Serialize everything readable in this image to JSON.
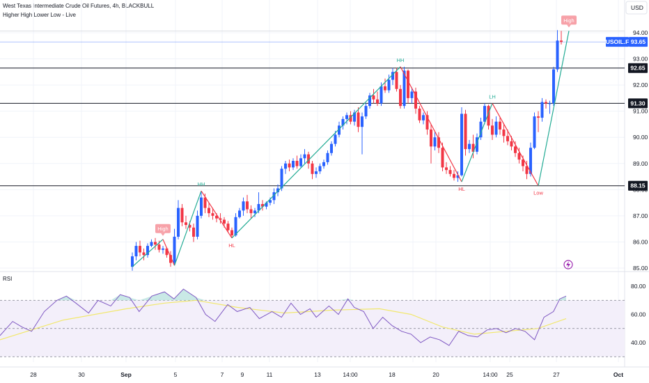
{
  "header": {
    "title": "West Texas Intermediate Crude Oil Futures, 4h, BLACKBULL",
    "subtitle": "Higher High Lower Low - Live",
    "currency": "USD",
    "rsi_label": "RSI"
  },
  "colors": {
    "bull": "#2962ff",
    "bear": "#f23645",
    "up_leg": "#22ab94",
    "down_leg": "#f23645",
    "level": "#131722",
    "price_line": "#2962ff",
    "rsi_line": "#7e57c2",
    "rsi_ma": "#f2e86d",
    "rsi_band": "#f3effa"
  },
  "chart_data": [
    {
      "type": "candlestick",
      "symbol": "USOIL.F",
      "last_price": "93.65",
      "ylim": [
        84.95,
        94.75
      ],
      "yticks": [
        "85.00",
        "86.00",
        "87.00",
        "88.00",
        "89.00",
        "90.00",
        "91.00",
        "92.00",
        "93.00",
        "94.00"
      ],
      "x_labels": [
        "28",
        "30",
        "Sep",
        "5",
        "7",
        "9",
        "11",
        "13",
        "14:00",
        "18",
        "20",
        "14:00",
        "25",
        "27",
        "Oct"
      ],
      "levels": [
        {
          "price": 92.65,
          "label": "92.65"
        },
        {
          "price": 91.3,
          "label": "91.30"
        },
        {
          "price": 88.15,
          "label": "88.15"
        }
      ],
      "extra_line": 94.07,
      "candles": [
        [
          85.05,
          85.6,
          84.9,
          85.45
        ],
        [
          85.45,
          86.0,
          85.3,
          85.85
        ],
        [
          85.85,
          86.05,
          85.45,
          85.6
        ],
        [
          85.6,
          85.75,
          85.3,
          85.5
        ],
        [
          85.5,
          85.95,
          85.4,
          85.85
        ],
        [
          85.85,
          86.1,
          85.8,
          86.0
        ],
        [
          86.0,
          86.15,
          85.7,
          85.9
        ],
        [
          85.9,
          86.05,
          85.6,
          85.7
        ],
        [
          85.7,
          85.85,
          85.55,
          85.75
        ],
        [
          85.75,
          85.8,
          85.4,
          85.5
        ],
        [
          85.5,
          85.65,
          85.05,
          85.2
        ],
        [
          85.2,
          86.5,
          85.1,
          86.2
        ],
        [
          86.2,
          87.6,
          86.1,
          87.3
        ],
        [
          87.3,
          87.45,
          86.6,
          86.75
        ],
        [
          86.75,
          87.0,
          86.5,
          86.65
        ],
        [
          86.65,
          86.8,
          86.4,
          86.55
        ],
        [
          86.55,
          86.7,
          86.0,
          86.2
        ],
        [
          86.2,
          87.2,
          86.1,
          87.0
        ],
        [
          87.0,
          87.95,
          86.9,
          87.7
        ],
        [
          87.7,
          87.85,
          87.1,
          87.3
        ],
        [
          87.3,
          87.5,
          86.95,
          87.1
        ],
        [
          87.1,
          87.3,
          86.85,
          87.0
        ],
        [
          87.0,
          87.1,
          86.75,
          86.9
        ],
        [
          86.9,
          87.1,
          86.7,
          86.85
        ],
        [
          86.85,
          86.95,
          86.55,
          86.7
        ],
        [
          86.7,
          86.8,
          86.35,
          86.45
        ],
        [
          86.45,
          86.55,
          86.15,
          86.25
        ],
        [
          86.25,
          87.1,
          86.2,
          86.95
        ],
        [
          86.95,
          87.3,
          86.9,
          87.2
        ],
        [
          87.2,
          87.7,
          87.0,
          87.55
        ],
        [
          87.55,
          87.8,
          87.1,
          87.25
        ],
        [
          87.25,
          87.4,
          86.9,
          87.1
        ],
        [
          87.1,
          87.3,
          86.95,
          87.2
        ],
        [
          87.2,
          87.9,
          87.1,
          87.45
        ],
        [
          87.45,
          87.6,
          87.2,
          87.35
        ],
        [
          87.35,
          87.55,
          87.25,
          87.5
        ],
        [
          87.5,
          87.7,
          87.4,
          87.6
        ],
        [
          87.6,
          88.05,
          87.45,
          87.9
        ],
        [
          87.9,
          88.2,
          87.75,
          88.05
        ],
        [
          88.05,
          88.9,
          87.95,
          88.8
        ],
        [
          88.8,
          89.1,
          88.6,
          89.0
        ],
        [
          89.0,
          89.15,
          88.7,
          88.85
        ],
        [
          88.85,
          89.2,
          88.75,
          89.1
        ],
        [
          89.1,
          89.3,
          88.8,
          88.9
        ],
        [
          88.9,
          89.35,
          88.85,
          89.2
        ],
        [
          89.2,
          89.55,
          89.0,
          89.35
        ],
        [
          89.35,
          89.45,
          88.8,
          89.0
        ],
        [
          89.0,
          89.1,
          88.4,
          88.6
        ],
        [
          88.6,
          88.85,
          88.45,
          88.7
        ],
        [
          88.7,
          89.0,
          88.6,
          88.9
        ],
        [
          88.9,
          89.15,
          88.8,
          89.05
        ],
        [
          89.05,
          89.5,
          88.95,
          89.4
        ],
        [
          89.4,
          89.85,
          89.3,
          89.75
        ],
        [
          89.75,
          90.25,
          89.65,
          90.1
        ],
        [
          90.1,
          90.6,
          90.0,
          90.45
        ],
        [
          90.45,
          90.8,
          90.3,
          90.7
        ],
        [
          90.7,
          90.95,
          90.5,
          90.85
        ],
        [
          90.85,
          91.0,
          90.5,
          90.6
        ],
        [
          90.6,
          91.05,
          90.45,
          90.95
        ],
        [
          90.95,
          91.15,
          90.2,
          90.4
        ],
        [
          90.4,
          90.95,
          89.35,
          90.8
        ],
        [
          90.8,
          91.3,
          90.7,
          91.2
        ],
        [
          91.2,
          91.7,
          91.1,
          91.6
        ],
        [
          91.6,
          91.85,
          91.3,
          91.45
        ],
        [
          91.45,
          91.75,
          91.2,
          91.3
        ],
        [
          91.3,
          92.1,
          91.2,
          91.95
        ],
        [
          91.95,
          92.25,
          91.7,
          91.8
        ],
        [
          91.8,
          92.4,
          91.7,
          92.2
        ],
        [
          92.2,
          92.65,
          92.0,
          92.5
        ],
        [
          92.5,
          92.65,
          91.75,
          91.85
        ],
        [
          91.85,
          92.0,
          91.1,
          91.2
        ],
        [
          91.2,
          92.7,
          91.1,
          92.55
        ],
        [
          92.55,
          92.6,
          91.3,
          91.5
        ],
        [
          91.5,
          91.9,
          91.3,
          91.75
        ],
        [
          91.75,
          91.9,
          90.9,
          91.1
        ],
        [
          91.1,
          91.2,
          90.55,
          90.65
        ],
        [
          90.65,
          90.95,
          90.5,
          90.85
        ],
        [
          90.85,
          91.0,
          90.1,
          90.3
        ],
        [
          90.3,
          90.5,
          89.0,
          89.65
        ],
        [
          89.65,
          90.2,
          89.5,
          90.0
        ],
        [
          90.0,
          90.2,
          89.4,
          89.6
        ],
        [
          89.6,
          89.8,
          88.7,
          88.85
        ],
        [
          88.85,
          89.05,
          88.6,
          88.75
        ],
        [
          88.75,
          88.9,
          88.5,
          88.6
        ],
        [
          88.6,
          88.75,
          88.35,
          88.45
        ],
        [
          88.45,
          88.7,
          88.3,
          88.55
        ],
        [
          88.55,
          91.15,
          88.5,
          90.9
        ],
        [
          90.9,
          91.05,
          89.3,
          89.55
        ],
        [
          89.55,
          89.9,
          89.4,
          89.75
        ],
        [
          89.75,
          90.1,
          89.2,
          89.45
        ],
        [
          89.45,
          90.15,
          89.35,
          90.0
        ],
        [
          90.0,
          90.75,
          89.9,
          90.6
        ],
        [
          90.6,
          91.3,
          90.5,
          91.2
        ],
        [
          91.2,
          91.25,
          90.3,
          90.45
        ],
        [
          90.45,
          90.7,
          89.9,
          90.1
        ],
        [
          90.1,
          90.8,
          90.0,
          90.6
        ],
        [
          90.6,
          90.75,
          90.1,
          90.3
        ],
        [
          90.3,
          90.5,
          89.8,
          90.05
        ],
        [
          90.05,
          90.3,
          89.7,
          89.85
        ],
        [
          89.85,
          90.05,
          89.5,
          89.65
        ],
        [
          89.65,
          89.85,
          89.25,
          89.4
        ],
        [
          89.4,
          89.6,
          89.0,
          89.15
        ],
        [
          89.15,
          89.3,
          88.7,
          88.9
        ],
        [
          88.9,
          89.1,
          88.4,
          88.6
        ],
        [
          88.6,
          89.8,
          88.5,
          89.6
        ],
        [
          89.6,
          90.95,
          89.55,
          90.8
        ],
        [
          90.8,
          91.0,
          90.2,
          90.75
        ],
        [
          90.75,
          91.5,
          90.6,
          91.35
        ],
        [
          91.35,
          91.45,
          91.1,
          91.3
        ],
        [
          91.3,
          91.4,
          90.9,
          91.3
        ],
        [
          91.3,
          92.7,
          91.2,
          92.6
        ],
        [
          92.6,
          94.1,
          92.5,
          93.7
        ],
        [
          93.7,
          94.07,
          93.55,
          93.65
        ]
      ],
      "annotations": [
        {
          "i": 8,
          "price": 86.1,
          "text": "High",
          "kind": "tag"
        },
        {
          "i": 18,
          "price": 87.95,
          "text": "HH",
          "kind": "up"
        },
        {
          "i": 26,
          "price": 86.15,
          "text": "HL",
          "kind": "down"
        },
        {
          "i": 70,
          "price": 92.7,
          "text": "HH",
          "kind": "up"
        },
        {
          "i": 86,
          "price": 88.3,
          "text": "HL",
          "kind": "down"
        },
        {
          "i": 94,
          "price": 91.3,
          "text": "LH",
          "kind": "up"
        },
        {
          "i": 106,
          "price": 88.15,
          "text": "Low",
          "kind": "down"
        },
        {
          "i": 114,
          "price": 94.07,
          "text": "High",
          "kind": "tag"
        }
      ],
      "zigzag": [
        {
          "i": 0,
          "price": 85.05
        },
        {
          "i": 8,
          "price": 86.1
        },
        {
          "i": 11,
          "price": 85.1
        },
        {
          "i": 18,
          "price": 87.95
        },
        {
          "i": 26,
          "price": 86.15
        },
        {
          "i": 70,
          "price": 92.7
        },
        {
          "i": 86,
          "price": 88.3
        },
        {
          "i": 94,
          "price": 91.3
        },
        {
          "i": 106,
          "price": 88.15
        },
        {
          "i": 114,
          "price": 94.07
        }
      ]
    },
    {
      "type": "line",
      "name": "RSI",
      "ylim": [
        27,
        86
      ],
      "yticks": [
        "40.00",
        "60.00",
        "80.00"
      ],
      "bands": [
        70,
        50,
        30
      ],
      "rsi": [
        {
          "i": 0,
          "v": 45
        },
        {
          "i": 4,
          "v": 55
        },
        {
          "i": 7,
          "v": 51
        },
        {
          "i": 10,
          "v": 48
        },
        {
          "i": 14,
          "v": 62
        },
        {
          "i": 18,
          "v": 70
        },
        {
          "i": 21,
          "v": 73
        },
        {
          "i": 24,
          "v": 68
        },
        {
          "i": 28,
          "v": 61
        },
        {
          "i": 31,
          "v": 70
        },
        {
          "i": 35,
          "v": 66
        },
        {
          "i": 38,
          "v": 74
        },
        {
          "i": 41,
          "v": 72
        },
        {
          "i": 44,
          "v": 62
        },
        {
          "i": 48,
          "v": 73
        },
        {
          "i": 52,
          "v": 76
        },
        {
          "i": 55,
          "v": 71
        },
        {
          "i": 58,
          "v": 78
        },
        {
          "i": 62,
          "v": 72
        },
        {
          "i": 65,
          "v": 60
        },
        {
          "i": 68,
          "v": 55
        },
        {
          "i": 72,
          "v": 67
        },
        {
          "i": 75,
          "v": 62
        },
        {
          "i": 79,
          "v": 65
        },
        {
          "i": 82,
          "v": 57
        },
        {
          "i": 86,
          "v": 62
        },
        {
          "i": 89,
          "v": 58
        },
        {
          "i": 92,
          "v": 68
        },
        {
          "i": 95,
          "v": 60
        },
        {
          "i": 98,
          "v": 64
        },
        {
          "i": 100,
          "v": 58
        },
        {
          "i": 104,
          "v": 66
        },
        {
          "i": 107,
          "v": 60
        },
        {
          "i": 110,
          "v": 71
        },
        {
          "i": 112,
          "v": 65
        },
        {
          "i": 115,
          "v": 62
        },
        {
          "i": 118,
          "v": 50
        },
        {
          "i": 121,
          "v": 58
        },
        {
          "i": 124,
          "v": 52
        },
        {
          "i": 127,
          "v": 48
        },
        {
          "i": 130,
          "v": 46
        },
        {
          "i": 133,
          "v": 40
        },
        {
          "i": 136,
          "v": 44
        },
        {
          "i": 139,
          "v": 42
        },
        {
          "i": 142,
          "v": 38
        },
        {
          "i": 145,
          "v": 48
        },
        {
          "i": 148,
          "v": 45
        },
        {
          "i": 151,
          "v": 44
        },
        {
          "i": 154,
          "v": 49
        },
        {
          "i": 157,
          "v": 50
        },
        {
          "i": 160,
          "v": 47
        },
        {
          "i": 163,
          "v": 50
        },
        {
          "i": 166,
          "v": 48
        },
        {
          "i": 169,
          "v": 42
        },
        {
          "i": 172,
          "v": 58
        },
        {
          "i": 175,
          "v": 62
        },
        {
          "i": 177,
          "v": 71
        },
        {
          "i": 179,
          "v": 73
        }
      ],
      "rsi_ma": [
        {
          "i": 0,
          "v": 42
        },
        {
          "i": 20,
          "v": 56
        },
        {
          "i": 40,
          "v": 64
        },
        {
          "i": 52,
          "v": 68
        },
        {
          "i": 62,
          "v": 70
        },
        {
          "i": 75,
          "v": 65
        },
        {
          "i": 90,
          "v": 61
        },
        {
          "i": 105,
          "v": 63
        },
        {
          "i": 120,
          "v": 64
        },
        {
          "i": 130,
          "v": 60
        },
        {
          "i": 140,
          "v": 51
        },
        {
          "i": 150,
          "v": 46
        },
        {
          "i": 160,
          "v": 48
        },
        {
          "i": 170,
          "v": 50
        },
        {
          "i": 179,
          "v": 57
        }
      ]
    }
  ]
}
